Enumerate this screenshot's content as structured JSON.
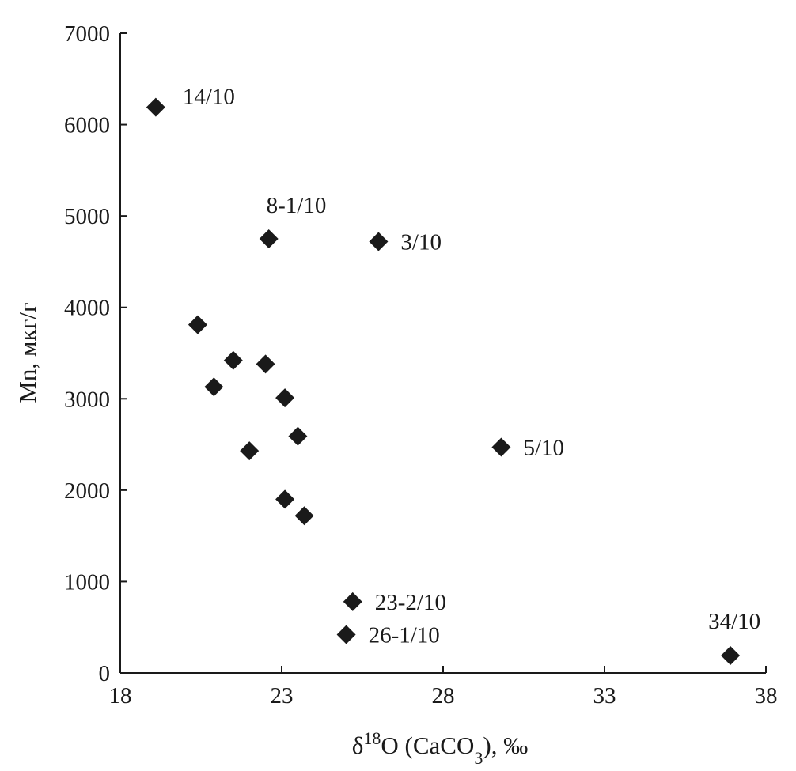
{
  "chart_data": {
    "type": "scatter",
    "title": "",
    "xlabel": {
      "prefix": "δ",
      "sup": "18",
      "mid": "O (CaCO",
      "sub": "3",
      "suffix": "), ‰"
    },
    "ylabel": "Mn, мкг/г",
    "xlim": [
      18,
      38
    ],
    "ylim": [
      0,
      7000
    ],
    "xticks": [
      18,
      23,
      28,
      33,
      38
    ],
    "yticks": [
      0,
      1000,
      2000,
      3000,
      4000,
      5000,
      6000,
      7000
    ],
    "grid": false,
    "legend": "none",
    "marker": "diamond",
    "marker_color": "#1a1a1a",
    "points": [
      {
        "x": 19.1,
        "y": 6190,
        "label": "14/10"
      },
      {
        "x": 22.6,
        "y": 4750,
        "label": "8-1/10"
      },
      {
        "x": 26.0,
        "y": 4720,
        "label": "3/10"
      },
      {
        "x": 20.4,
        "y": 3810,
        "label": ""
      },
      {
        "x": 21.5,
        "y": 3420,
        "label": ""
      },
      {
        "x": 22.5,
        "y": 3380,
        "label": ""
      },
      {
        "x": 20.9,
        "y": 3130,
        "label": ""
      },
      {
        "x": 23.1,
        "y": 3010,
        "label": ""
      },
      {
        "x": 23.5,
        "y": 2590,
        "label": ""
      },
      {
        "x": 22.0,
        "y": 2430,
        "label": ""
      },
      {
        "x": 29.8,
        "y": 2470,
        "label": "5/10"
      },
      {
        "x": 23.1,
        "y": 1900,
        "label": ""
      },
      {
        "x": 23.7,
        "y": 1720,
        "label": ""
      },
      {
        "x": 25.2,
        "y": 780,
        "label": "23-2/10"
      },
      {
        "x": 25.0,
        "y": 420,
        "label": "26-1/10"
      },
      {
        "x": 36.9,
        "y": 190,
        "label": "34/10"
      }
    ]
  }
}
